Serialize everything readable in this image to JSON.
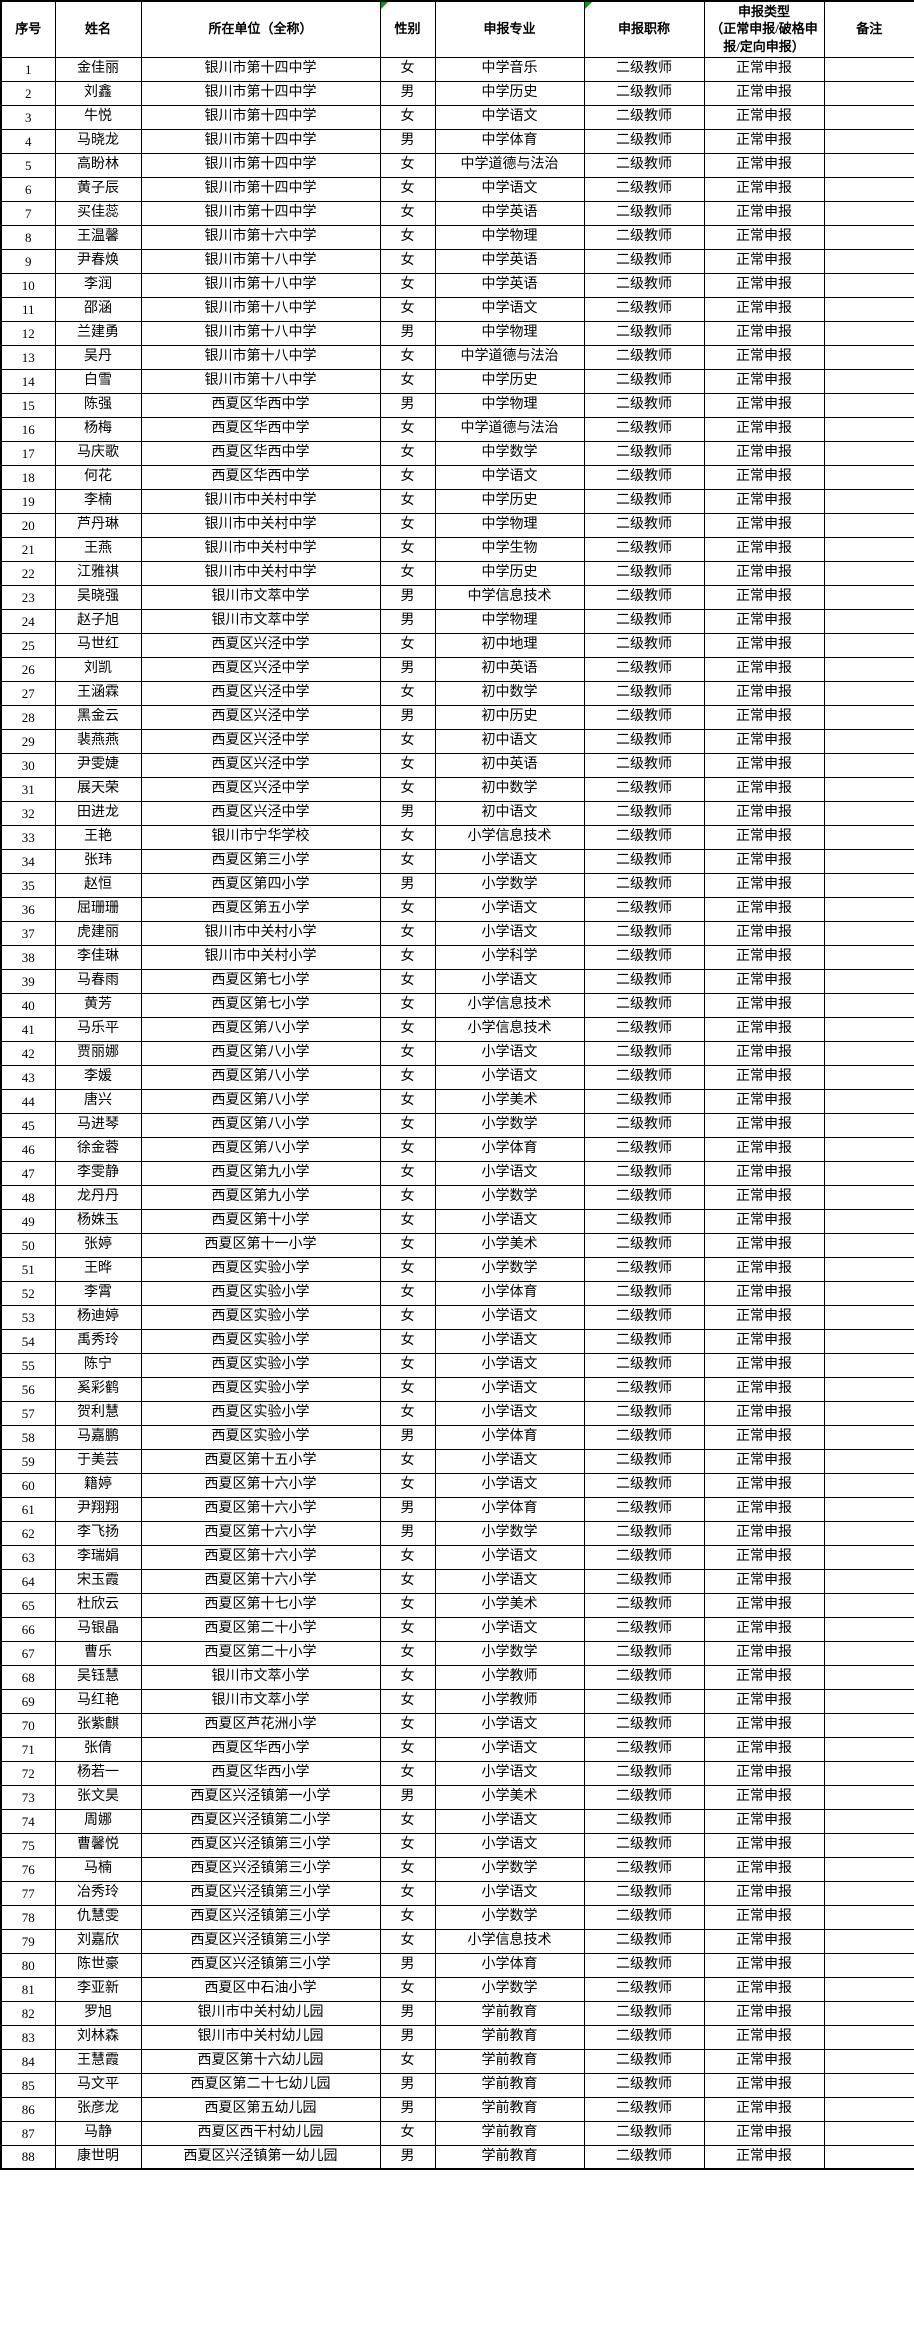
{
  "table": {
    "columns": [
      "序号",
      "姓名",
      "所在单位（全称）",
      "性别",
      "申报专业",
      "申报职称",
      "申报类型\n（正常申报/破格申报/定向申报）",
      "备注"
    ],
    "marker_columns": [
      3,
      5
    ],
    "marker_color": "#00a000",
    "rows": [
      [
        1,
        "金佳丽",
        "银川市第十四中学",
        "女",
        "中学音乐",
        "二级教师",
        "正常申报",
        ""
      ],
      [
        2,
        "刘鑫",
        "银川市第十四中学",
        "男",
        "中学历史",
        "二级教师",
        "正常申报",
        ""
      ],
      [
        3,
        "牛悦",
        "银川市第十四中学",
        "女",
        "中学语文",
        "二级教师",
        "正常申报",
        ""
      ],
      [
        4,
        "马晓龙",
        "银川市第十四中学",
        "男",
        "中学体育",
        "二级教师",
        "正常申报",
        ""
      ],
      [
        5,
        "高盼林",
        "银川市第十四中学",
        "女",
        "中学道德与法治",
        "二级教师",
        "正常申报",
        ""
      ],
      [
        6,
        "黄子辰",
        "银川市第十四中学",
        "女",
        "中学语文",
        "二级教师",
        "正常申报",
        ""
      ],
      [
        7,
        "买佳蕊",
        "银川市第十四中学",
        "女",
        "中学英语",
        "二级教师",
        "正常申报",
        ""
      ],
      [
        8,
        "王温馨",
        "银川市第十六中学",
        "女",
        "中学物理",
        "二级教师",
        "正常申报",
        ""
      ],
      [
        9,
        "尹春焕",
        "银川市第十八中学",
        "女",
        "中学英语",
        "二级教师",
        "正常申报",
        ""
      ],
      [
        10,
        "李润",
        "银川市第十八中学",
        "女",
        "中学英语",
        "二级教师",
        "正常申报",
        ""
      ],
      [
        11,
        "邵涵",
        "银川市第十八中学",
        "女",
        "中学语文",
        "二级教师",
        "正常申报",
        ""
      ],
      [
        12,
        "兰建勇",
        "银川市第十八中学",
        "男",
        "中学物理",
        "二级教师",
        "正常申报",
        ""
      ],
      [
        13,
        "吴丹",
        "银川市第十八中学",
        "女",
        "中学道德与法治",
        "二级教师",
        "正常申报",
        ""
      ],
      [
        14,
        "白雪",
        "银川市第十八中学",
        "女",
        "中学历史",
        "二级教师",
        "正常申报",
        ""
      ],
      [
        15,
        "陈强",
        "西夏区华西中学",
        "男",
        "中学物理",
        "二级教师",
        "正常申报",
        ""
      ],
      [
        16,
        "杨梅",
        "西夏区华西中学",
        "女",
        "中学道德与法治",
        "二级教师",
        "正常申报",
        ""
      ],
      [
        17,
        "马庆歌",
        "西夏区华西中学",
        "女",
        "中学数学",
        "二级教师",
        "正常申报",
        ""
      ],
      [
        18,
        "何花",
        "西夏区华西中学",
        "女",
        "中学语文",
        "二级教师",
        "正常申报",
        ""
      ],
      [
        19,
        "李楠",
        "银川市中关村中学",
        "女",
        "中学历史",
        "二级教师",
        "正常申报",
        ""
      ],
      [
        20,
        "芦丹琳",
        "银川市中关村中学",
        "女",
        "中学物理",
        "二级教师",
        "正常申报",
        ""
      ],
      [
        21,
        "王燕",
        "银川市中关村中学",
        "女",
        "中学生物",
        "二级教师",
        "正常申报",
        ""
      ],
      [
        22,
        "江雅祺",
        "银川市中关村中学",
        "女",
        "中学历史",
        "二级教师",
        "正常申报",
        ""
      ],
      [
        23,
        "吴晓强",
        "银川市文萃中学",
        "男",
        "中学信息技术",
        "二级教师",
        "正常申报",
        ""
      ],
      [
        24,
        "赵子旭",
        "银川市文萃中学",
        "男",
        "中学物理",
        "二级教师",
        "正常申报",
        ""
      ],
      [
        25,
        "马世红",
        "西夏区兴泾中学",
        "女",
        "初中地理",
        "二级教师",
        "正常申报",
        ""
      ],
      [
        26,
        "刘凯",
        "西夏区兴泾中学",
        "男",
        "初中英语",
        "二级教师",
        "正常申报",
        ""
      ],
      [
        27,
        "王涵霖",
        "西夏区兴泾中学",
        "女",
        "初中数学",
        "二级教师",
        "正常申报",
        ""
      ],
      [
        28,
        "黑金云",
        "西夏区兴泾中学",
        "男",
        "初中历史",
        "二级教师",
        "正常申报",
        ""
      ],
      [
        29,
        "裴燕燕",
        "西夏区兴泾中学",
        "女",
        "初中语文",
        "二级教师",
        "正常申报",
        ""
      ],
      [
        30,
        "尹雯婕",
        "西夏区兴泾中学",
        "女",
        "初中英语",
        "二级教师",
        "正常申报",
        ""
      ],
      [
        31,
        "展天荣",
        "西夏区兴泾中学",
        "女",
        "初中数学",
        "二级教师",
        "正常申报",
        ""
      ],
      [
        32,
        "田进龙",
        "西夏区兴泾中学",
        "男",
        "初中语文",
        "二级教师",
        "正常申报",
        ""
      ],
      [
        33,
        "王艳",
        "银川市宁华学校",
        "女",
        "小学信息技术",
        "二级教师",
        "正常申报",
        ""
      ],
      [
        34,
        "张玮",
        "西夏区第三小学",
        "女",
        "小学语文",
        "二级教师",
        "正常申报",
        ""
      ],
      [
        35,
        "赵恒",
        "西夏区第四小学",
        "男",
        "小学数学",
        "二级教师",
        "正常申报",
        ""
      ],
      [
        36,
        "屈珊珊",
        "西夏区第五小学",
        "女",
        "小学语文",
        "二级教师",
        "正常申报",
        ""
      ],
      [
        37,
        "虎建丽",
        "银川市中关村小学",
        "女",
        "小学语文",
        "二级教师",
        "正常申报",
        ""
      ],
      [
        38,
        "李佳琳",
        "银川市中关村小学",
        "女",
        "小学科学",
        "二级教师",
        "正常申报",
        ""
      ],
      [
        39,
        "马春雨",
        "西夏区第七小学",
        "女",
        "小学语文",
        "二级教师",
        "正常申报",
        ""
      ],
      [
        40,
        "黄芳",
        "西夏区第七小学",
        "女",
        "小学信息技术",
        "二级教师",
        "正常申报",
        ""
      ],
      [
        41,
        "马乐平",
        "西夏区第八小学",
        "女",
        "小学信息技术",
        "二级教师",
        "正常申报",
        ""
      ],
      [
        42,
        "贾丽娜",
        "西夏区第八小学",
        "女",
        "小学语文",
        "二级教师",
        "正常申报",
        ""
      ],
      [
        43,
        "李媛",
        "西夏区第八小学",
        "女",
        "小学语文",
        "二级教师",
        "正常申报",
        ""
      ],
      [
        44,
        "唐兴",
        "西夏区第八小学",
        "女",
        "小学美术",
        "二级教师",
        "正常申报",
        ""
      ],
      [
        45,
        "马进琴",
        "西夏区第八小学",
        "女",
        "小学数学",
        "二级教师",
        "正常申报",
        ""
      ],
      [
        46,
        "徐金蓉",
        "西夏区第八小学",
        "女",
        "小学体育",
        "二级教师",
        "正常申报",
        ""
      ],
      [
        47,
        "李雯静",
        "西夏区第九小学",
        "女",
        "小学语文",
        "二级教师",
        "正常申报",
        ""
      ],
      [
        48,
        "龙丹丹",
        "西夏区第九小学",
        "女",
        "小学数学",
        "二级教师",
        "正常申报",
        ""
      ],
      [
        49,
        "杨姝玉",
        "西夏区第十小学",
        "女",
        "小学语文",
        "二级教师",
        "正常申报",
        ""
      ],
      [
        50,
        "张婷",
        "西夏区第十一小学",
        "女",
        "小学美术",
        "二级教师",
        "正常申报",
        ""
      ],
      [
        51,
        "王晔",
        "西夏区实验小学",
        "女",
        "小学数学",
        "二级教师",
        "正常申报",
        ""
      ],
      [
        52,
        "李霄",
        "西夏区实验小学",
        "女",
        "小学体育",
        "二级教师",
        "正常申报",
        ""
      ],
      [
        53,
        "杨迪婷",
        "西夏区实验小学",
        "女",
        "小学语文",
        "二级教师",
        "正常申报",
        ""
      ],
      [
        54,
        "禹秀玲",
        "西夏区实验小学",
        "女",
        "小学语文",
        "二级教师",
        "正常申报",
        ""
      ],
      [
        55,
        "陈宁",
        "西夏区实验小学",
        "女",
        "小学语文",
        "二级教师",
        "正常申报",
        ""
      ],
      [
        56,
        "奚彩鹤",
        "西夏区实验小学",
        "女",
        "小学语文",
        "二级教师",
        "正常申报",
        ""
      ],
      [
        57,
        "贺利慧",
        "西夏区实验小学",
        "女",
        "小学语文",
        "二级教师",
        "正常申报",
        ""
      ],
      [
        58,
        "马嘉鹏",
        "西夏区实验小学",
        "男",
        "小学体育",
        "二级教师",
        "正常申报",
        ""
      ],
      [
        59,
        "于美芸",
        "西夏区第十五小学",
        "女",
        "小学语文",
        "二级教师",
        "正常申报",
        ""
      ],
      [
        60,
        "籍婷",
        "西夏区第十六小学",
        "女",
        "小学语文",
        "二级教师",
        "正常申报",
        ""
      ],
      [
        61,
        "尹翔翔",
        "西夏区第十六小学",
        "男",
        "小学体育",
        "二级教师",
        "正常申报",
        ""
      ],
      [
        62,
        "李飞扬",
        "西夏区第十六小学",
        "男",
        "小学数学",
        "二级教师",
        "正常申报",
        ""
      ],
      [
        63,
        "李瑞娟",
        "西夏区第十六小学",
        "女",
        "小学语文",
        "二级教师",
        "正常申报",
        ""
      ],
      [
        64,
        "宋玉霞",
        "西夏区第十六小学",
        "女",
        "小学语文",
        "二级教师",
        "正常申报",
        ""
      ],
      [
        65,
        "杜欣云",
        "西夏区第十七小学",
        "女",
        "小学美术",
        "二级教师",
        "正常申报",
        ""
      ],
      [
        66,
        "马银晶",
        "西夏区第二十小学",
        "女",
        "小学语文",
        "二级教师",
        "正常申报",
        ""
      ],
      [
        67,
        "曹乐",
        "西夏区第二十小学",
        "女",
        "小学数学",
        "二级教师",
        "正常申报",
        ""
      ],
      [
        68,
        "吴钰慧",
        "银川市文萃小学",
        "女",
        "小学教师",
        "二级教师",
        "正常申报",
        ""
      ],
      [
        69,
        "马红艳",
        "银川市文萃小学",
        "女",
        "小学教师",
        "二级教师",
        "正常申报",
        ""
      ],
      [
        70,
        "张紫麒",
        "西夏区芦花洲小学",
        "女",
        "小学语文",
        "二级教师",
        "正常申报",
        ""
      ],
      [
        71,
        "张倩",
        "西夏区华西小学",
        "女",
        "小学语文",
        "二级教师",
        "正常申报",
        ""
      ],
      [
        72,
        "杨若一",
        "西夏区华西小学",
        "女",
        "小学语文",
        "二级教师",
        "正常申报",
        ""
      ],
      [
        73,
        "张文昊",
        "西夏区兴泾镇第一小学",
        "男",
        "小学美术",
        "二级教师",
        "正常申报",
        ""
      ],
      [
        74,
        "周娜",
        "西夏区兴泾镇第二小学",
        "女",
        "小学语文",
        "二级教师",
        "正常申报",
        ""
      ],
      [
        75,
        "曹馨悦",
        "西夏区兴泾镇第三小学",
        "女",
        "小学语文",
        "二级教师",
        "正常申报",
        ""
      ],
      [
        76,
        "马楠",
        "西夏区兴泾镇第三小学",
        "女",
        "小学数学",
        "二级教师",
        "正常申报",
        ""
      ],
      [
        77,
        "冶秀玲",
        "西夏区兴泾镇第三小学",
        "女",
        "小学语文",
        "二级教师",
        "正常申报",
        ""
      ],
      [
        78,
        "仇慧雯",
        "西夏区兴泾镇第三小学",
        "女",
        "小学数学",
        "二级教师",
        "正常申报",
        ""
      ],
      [
        79,
        "刘嘉欣",
        "西夏区兴泾镇第三小学",
        "女",
        "小学信息技术",
        "二级教师",
        "正常申报",
        ""
      ],
      [
        80,
        "陈世豪",
        "西夏区兴泾镇第三小学",
        "男",
        "小学体育",
        "二级教师",
        "正常申报",
        ""
      ],
      [
        81,
        "李亚新",
        "西夏区中石油小学",
        "女",
        "小学数学",
        "二级教师",
        "正常申报",
        ""
      ],
      [
        82,
        "罗旭",
        "银川市中关村幼儿园",
        "男",
        "学前教育",
        "二级教师",
        "正常申报",
        ""
      ],
      [
        83,
        "刘林森",
        "银川市中关村幼儿园",
        "男",
        "学前教育",
        "二级教师",
        "正常申报",
        ""
      ],
      [
        84,
        "王慧霞",
        "西夏区第十六幼儿园",
        "女",
        "学前教育",
        "二级教师",
        "正常申报",
        ""
      ],
      [
        85,
        "马文平",
        "西夏区第二十七幼儿园",
        "男",
        "学前教育",
        "二级教师",
        "正常申报",
        ""
      ],
      [
        86,
        "张彦龙",
        "西夏区第五幼儿园",
        "男",
        "学前教育",
        "二级教师",
        "正常申报",
        ""
      ],
      [
        87,
        "马静",
        "西夏区西干村幼儿园",
        "女",
        "学前教育",
        "二级教师",
        "正常申报",
        ""
      ],
      [
        88,
        "康世明",
        "西夏区兴泾镇第一幼儿园",
        "男",
        "学前教育",
        "二级教师",
        "正常申报",
        ""
      ]
    ]
  }
}
